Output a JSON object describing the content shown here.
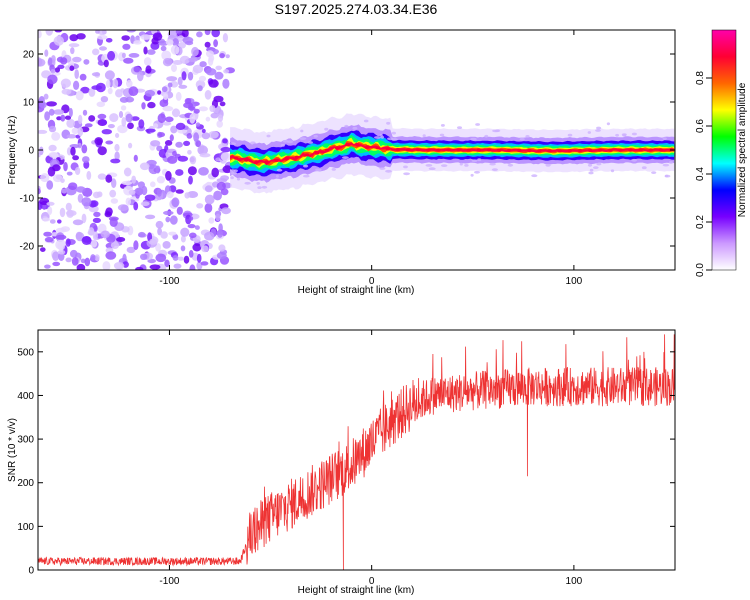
{
  "title": "S197.2025.274.03.34.E36",
  "chart_data": [
    {
      "type": "heatmap",
      "name": "spectrogram",
      "xlabel": "Height of straight line (km)",
      "ylabel": "Frequency (Hz)",
      "xlim": [
        -165,
        150
      ],
      "ylim": [
        -25,
        25
      ],
      "xticks": [
        -100,
        0,
        100
      ],
      "xtick_labels": [
        "-100",
        "0",
        "100"
      ],
      "yticks": [
        20,
        10,
        0,
        -10,
        -20
      ],
      "ytick_labels": [
        "20",
        "10",
        "0",
        "-10",
        "-20"
      ],
      "noise_region_x": [
        -165,
        -70
      ],
      "signal_region_x": [
        -70,
        150
      ],
      "center_frequency_track": [
        [
          -72,
          -1.5
        ],
        [
          -65,
          -1.8
        ],
        [
          -60,
          -2.3
        ],
        [
          -55,
          -2.6
        ],
        [
          -50,
          -2.4
        ],
        [
          -45,
          -2.0
        ],
        [
          -40,
          -1.8
        ],
        [
          -35,
          -1.3
        ],
        [
          -30,
          -0.8
        ],
        [
          -25,
          -0.5
        ],
        [
          -20,
          0.3
        ],
        [
          -15,
          0.6
        ],
        [
          -10,
          1.4
        ],
        [
          -5,
          0.8
        ],
        [
          0,
          0.6
        ],
        [
          10,
          0.1
        ],
        [
          30,
          0.0
        ],
        [
          60,
          0.0
        ],
        [
          90,
          -0.2
        ],
        [
          120,
          0.0
        ],
        [
          150,
          0.0
        ]
      ],
      "colorbar": {
        "label": "Normalized spectral amplitude",
        "range": [
          0.0,
          1.0
        ],
        "ticks": [
          0.0,
          0.2,
          0.4,
          0.6,
          0.8
        ],
        "tick_labels": [
          "0.0",
          "0.2",
          "0.4",
          "0.6",
          "0.8"
        ],
        "colors": [
          "#ffffff",
          "#cc99ff",
          "#7700ff",
          "#0000ff",
          "#00ffff",
          "#00ff00",
          "#ffff00",
          "#ff6600",
          "#ff0033",
          "#ff00aa"
        ]
      }
    },
    {
      "type": "line",
      "name": "snr",
      "xlabel": "Height of straight line (km)",
      "ylabel": "SNR (10 * v/v)",
      "xlim": [
        -165,
        150
      ],
      "ylim": [
        0,
        550
      ],
      "xticks": [
        -100,
        0,
        100
      ],
      "xtick_labels": [
        "-100",
        "0",
        "100"
      ],
      "yticks": [
        0,
        100,
        200,
        300,
        400,
        500
      ],
      "ytick_labels": [
        "0",
        "100",
        "200",
        "300",
        "400",
        "500"
      ],
      "color": "#ee3333",
      "trend": [
        [
          -165,
          20
        ],
        [
          -65,
          20
        ],
        [
          -60,
          80
        ],
        [
          -50,
          120
        ],
        [
          -40,
          150
        ],
        [
          -30,
          180
        ],
        [
          -20,
          210
        ],
        [
          -10,
          240
        ],
        [
          0,
          290
        ],
        [
          10,
          340
        ],
        [
          20,
          380
        ],
        [
          30,
          400
        ],
        [
          50,
          410
        ],
        [
          80,
          420
        ],
        [
          100,
          420
        ],
        [
          120,
          420
        ],
        [
          150,
          420
        ]
      ],
      "peak_max": 540,
      "dip_annotation": [
        [
          -14,
          0
        ],
        [
          77,
          215
        ]
      ]
    }
  ]
}
